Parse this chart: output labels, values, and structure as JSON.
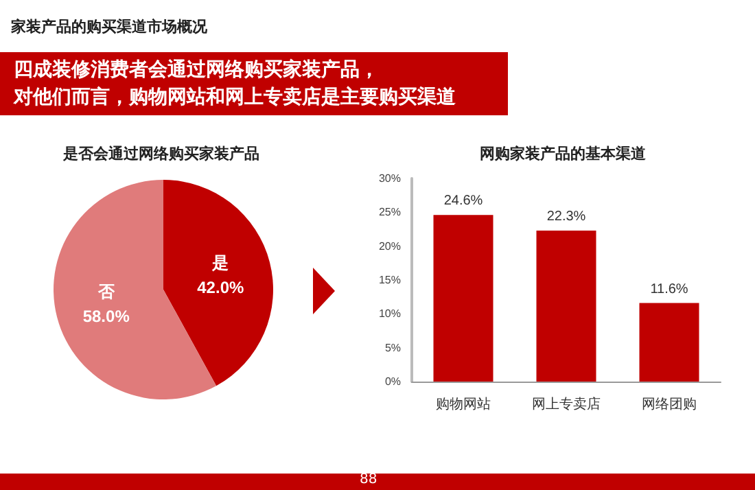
{
  "chart_data": [
    {
      "type": "pie",
      "title": "是否会通过网络购买家装产品",
      "categories": [
        "是",
        "否"
      ],
      "values": [
        42.0,
        58.0
      ],
      "colors": [
        "#c00000",
        "#e07b7b"
      ],
      "value_labels": [
        "42.0%",
        "58.0%"
      ],
      "annotations": [
        "家装产品的购买渠道市场概况",
        "四成装修消费者会通过网络购买家装产品，",
        "对他们而言，购物网站和网上专卖店是主要购买渠道"
      ]
    },
    {
      "type": "bar",
      "title": "网购家装产品的基本渠道",
      "categories": [
        "购物网站",
        "网上专卖店",
        "网络团购"
      ],
      "values": [
        24.6,
        22.3,
        11.6
      ],
      "color": "#c00000",
      "value_labels": [
        "24.6%",
        "22.3%",
        "11.6%"
      ],
      "ylim": [
        0,
        30
      ],
      "yticks": [
        {
          "value": 0,
          "label": "0%"
        },
        {
          "value": 5,
          "label": "5%"
        },
        {
          "value": 10,
          "label": "10%"
        },
        {
          "value": 15,
          "label": "15%"
        },
        {
          "value": 20,
          "label": "20%"
        },
        {
          "value": 25,
          "label": "25%"
        },
        {
          "value": 30,
          "label": "30%"
        }
      ],
      "grid": false,
      "annotations": [
        "88"
      ]
    }
  ]
}
